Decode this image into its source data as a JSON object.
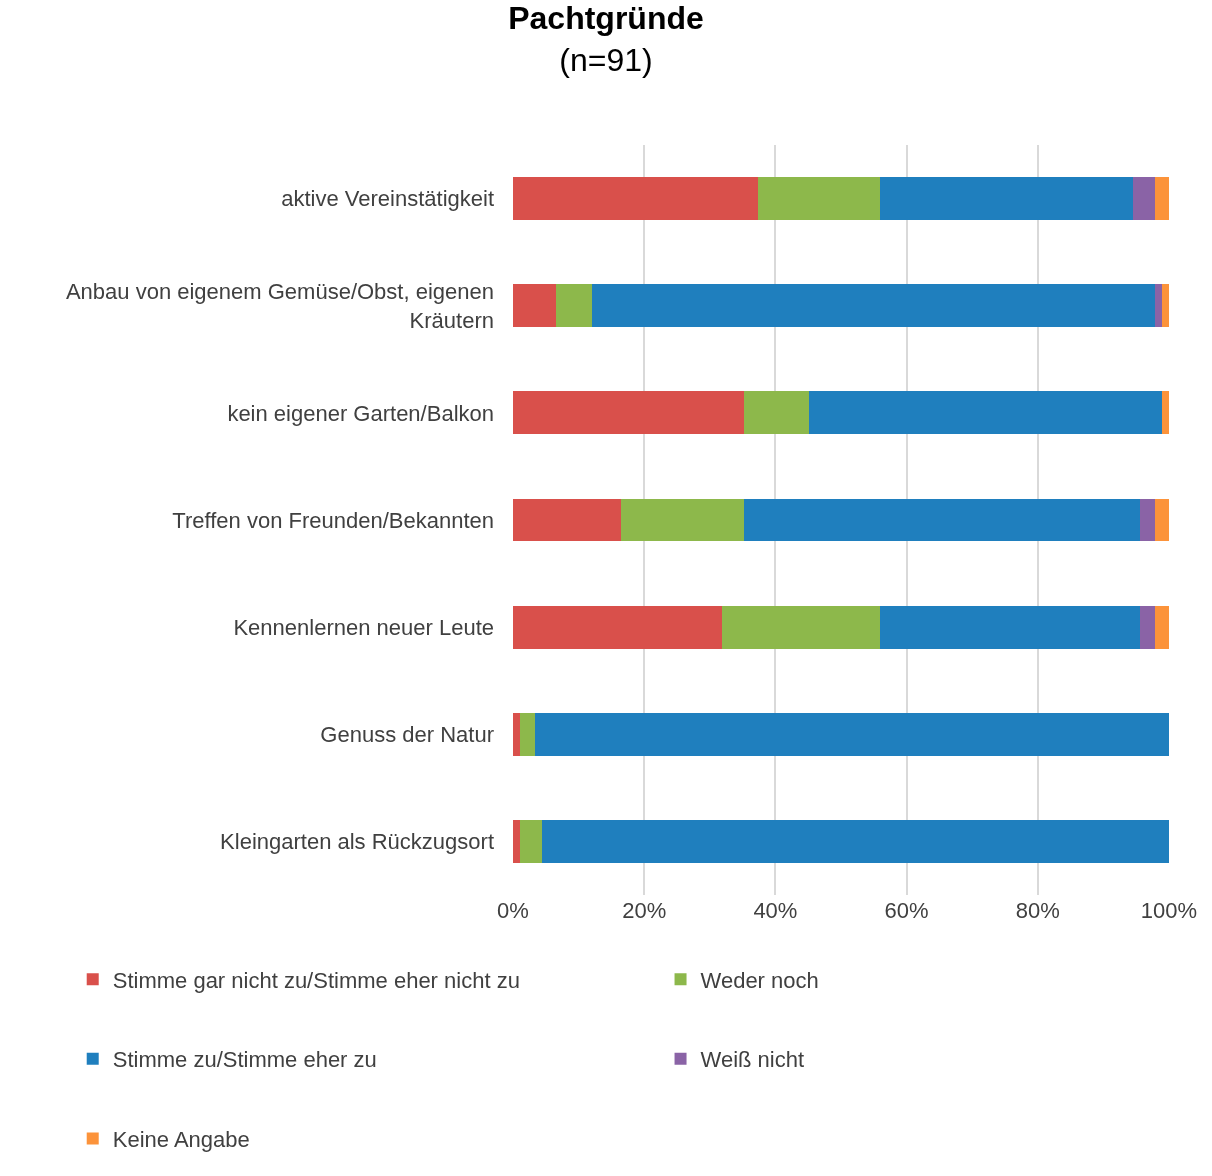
{
  "chart_data": {
    "type": "bar",
    "orientation": "horizontal",
    "stacked": true,
    "title": "Pachtgründe",
    "subtitle": "(n=91)",
    "categories": [
      "aktive Vereinstätigkeit",
      "Anbau von eigenem Gemüse/Obst, eigenen Kräutern",
      "kein eigener Garten/Balkon",
      "Treffen von Freunden/Bekannten",
      "Kennenlernen neuer Leute",
      "Genuss der Natur",
      "Kleingarten als Rückzugsort"
    ],
    "series": [
      {
        "name": "Stimme gar nicht zu/Stimme eher nicht zu",
        "color": "#d9504b",
        "values": [
          37.3,
          6.6,
          35.2,
          16.5,
          31.8,
          1.1,
          1.1
        ]
      },
      {
        "name": "Weder noch",
        "color": "#8db84b",
        "values": [
          18.7,
          5.5,
          9.9,
          18.7,
          24.2,
          2.2,
          3.3
        ]
      },
      {
        "name": "Stimme zu/Stimme eher zu",
        "color": "#1f7fbe",
        "values": [
          38.5,
          85.7,
          53.8,
          60.4,
          39.6,
          96.7,
          95.6
        ]
      },
      {
        "name": "Weiß nicht",
        "color": "#8a63a6",
        "values": [
          3.3,
          1.1,
          0,
          2.2,
          2.2,
          0,
          0
        ]
      },
      {
        "name": "Keine Angabe",
        "color": "#fc933a",
        "values": [
          2.2,
          1.1,
          1.1,
          2.2,
          2.2,
          0,
          0
        ]
      }
    ],
    "xlim": [
      0,
      100
    ],
    "xticks": [
      {
        "value": 0,
        "label": "0%"
      },
      {
        "value": 20,
        "label": "20%"
      },
      {
        "value": 40,
        "label": "40%"
      },
      {
        "value": 60,
        "label": "60%"
      },
      {
        "value": 80,
        "label": "80%"
      },
      {
        "value": 100,
        "label": "100%"
      }
    ],
    "grid": "x",
    "legend": "bottom"
  }
}
